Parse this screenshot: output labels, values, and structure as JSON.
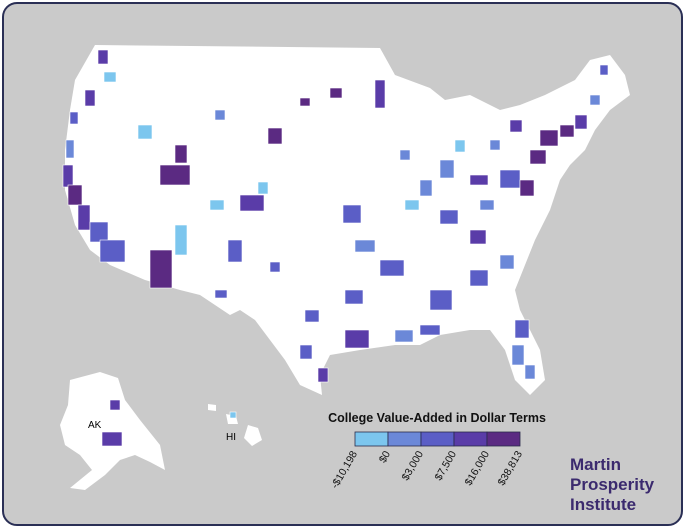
{
  "map": {
    "legend": {
      "title": "College Value-Added in Dollar Terms",
      "labels": [
        "-$10,198",
        "$0",
        "$3,000",
        "$7,500",
        "$16,000",
        "$38,813"
      ],
      "colors": [
        "#7cc6ee",
        "#6b88d8",
        "#5b5ec6",
        "#5a3ca8",
        "#5b2a82"
      ]
    },
    "region_labels": {
      "alaska": "AK",
      "hawaii": "HI"
    },
    "logo": [
      "Martin",
      "Prosperity",
      "Institute"
    ]
  }
}
